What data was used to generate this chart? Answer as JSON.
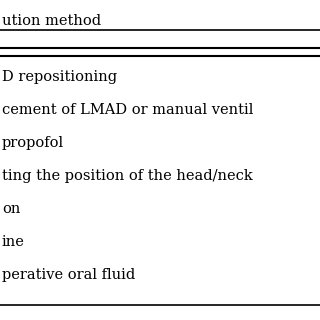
{
  "header": "ution method",
  "rows": [
    "D repositioning",
    "cement of LMAD or manual ventil",
    "propofol",
    "ting the position of the head/neck",
    "on",
    "ine",
    "perative oral fluid"
  ],
  "bg_color": "#ffffff",
  "text_color": "#000000",
  "font_size": 10.5,
  "header_font_size": 10.5,
  "line_color": "#000000"
}
